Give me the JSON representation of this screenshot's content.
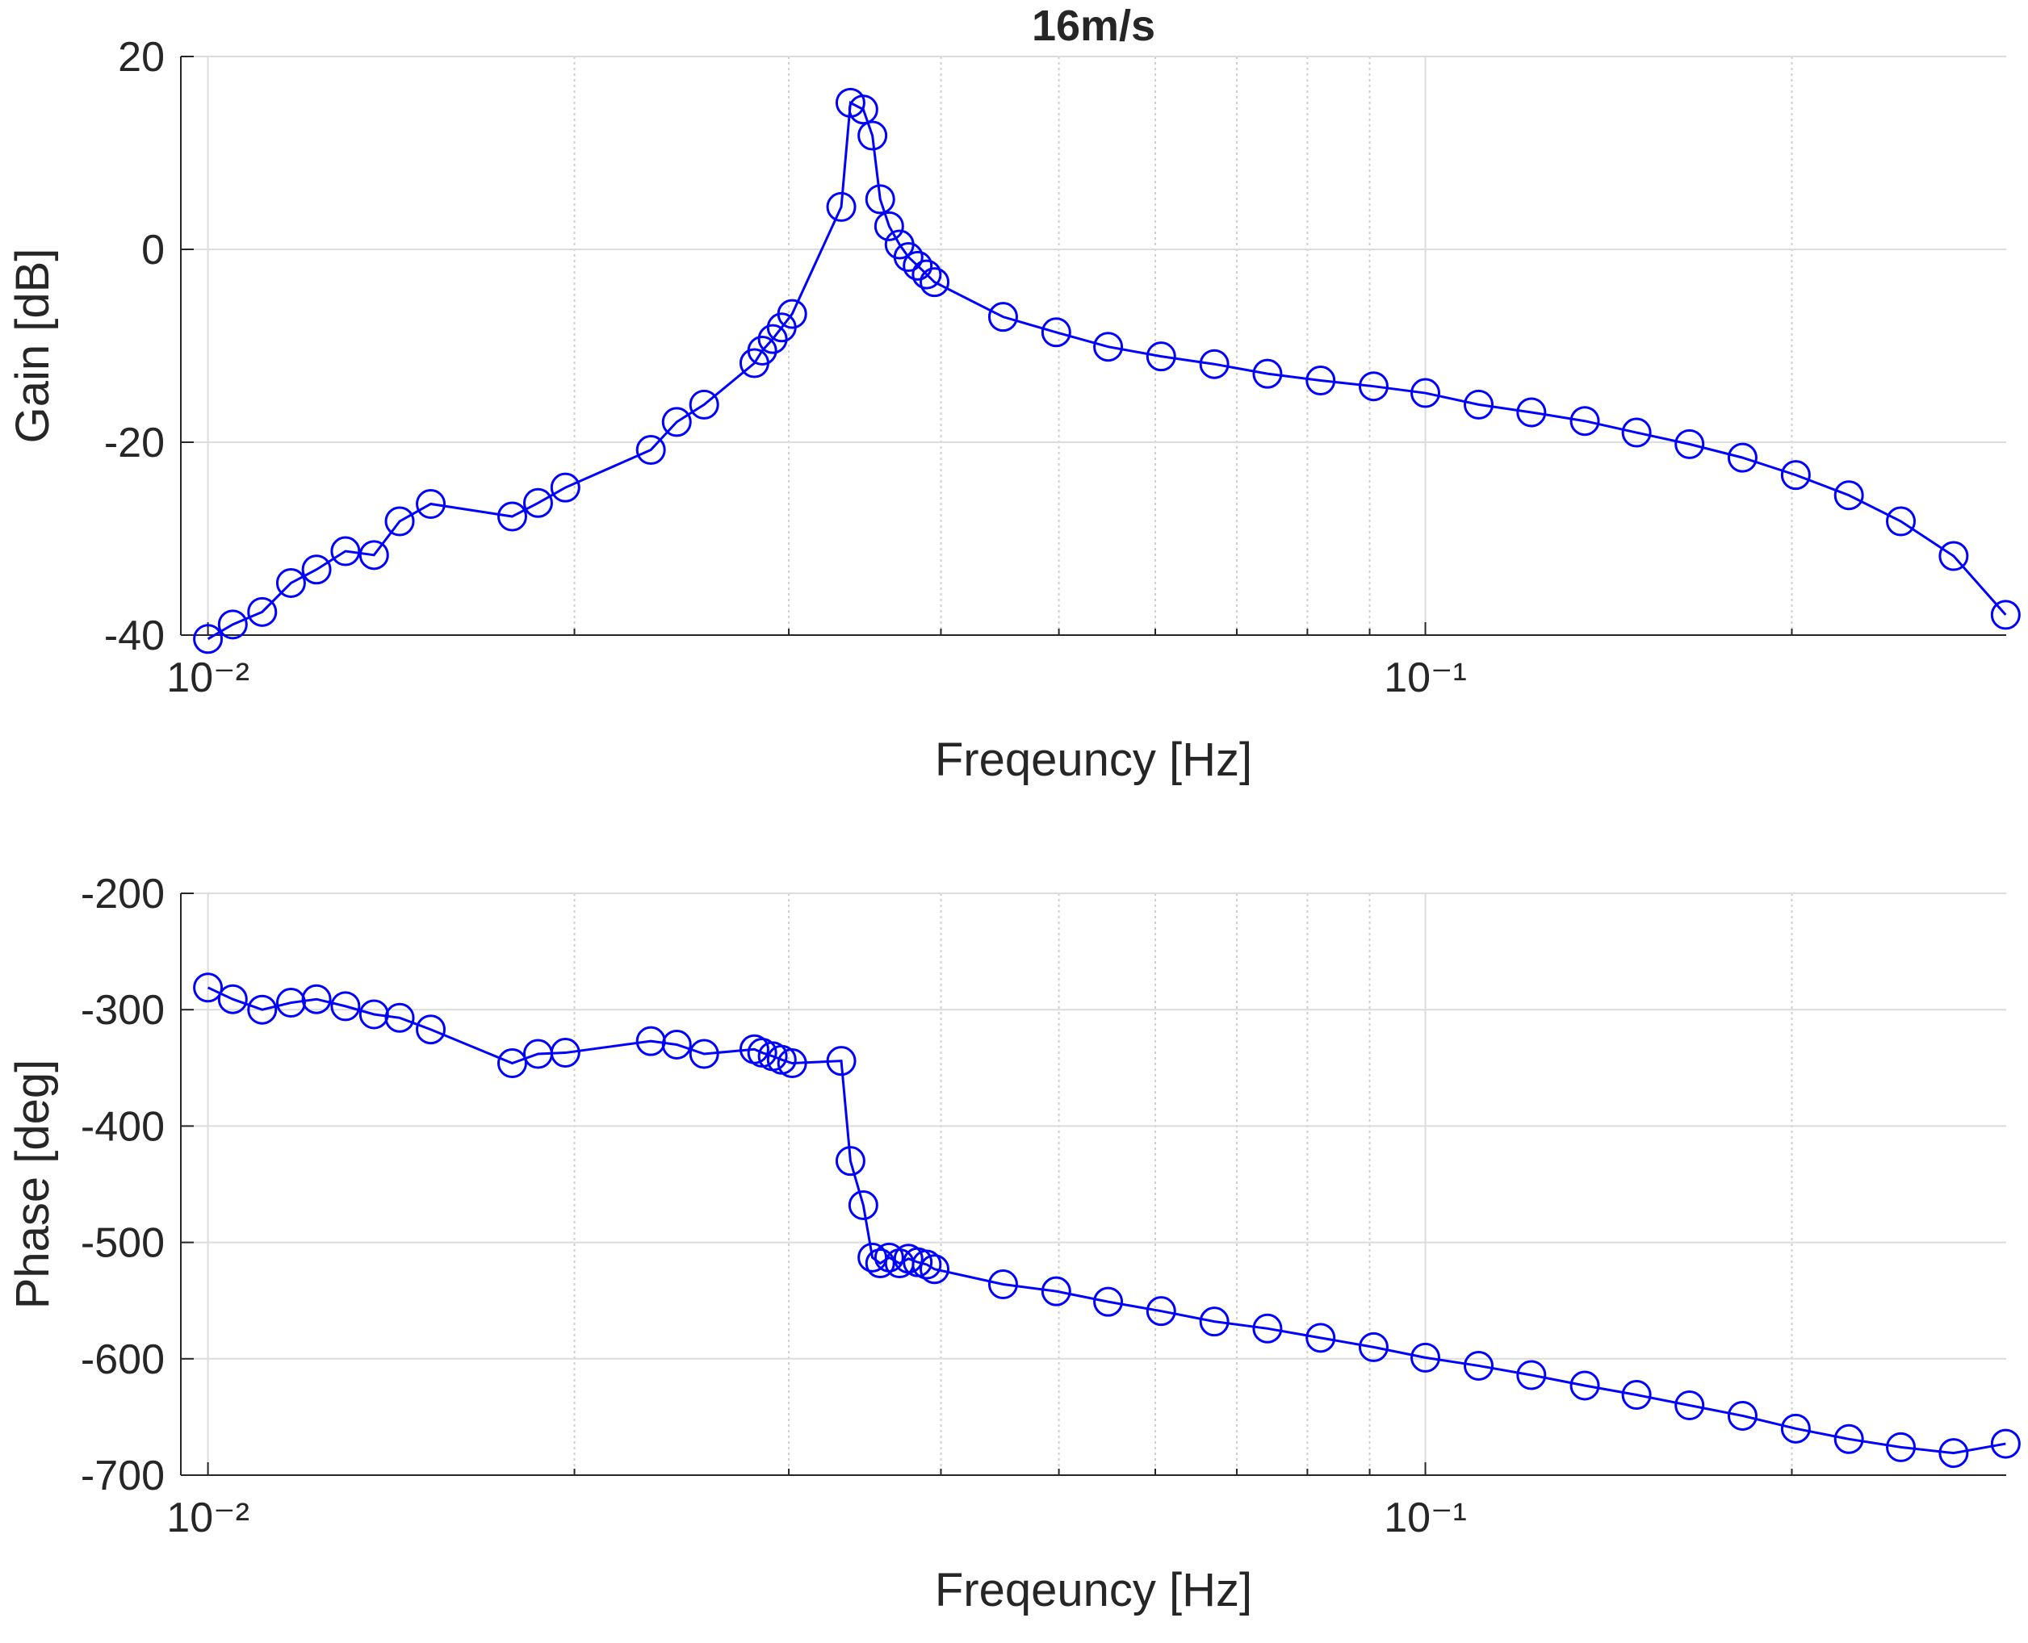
{
  "chart_data": [
    {
      "type": "line",
      "title": "16m/s",
      "xlabel": "Freqeuncy [Hz]",
      "ylabel": "Gain [dB]",
      "xscale": "log",
      "grid": true,
      "minor_grid": true,
      "color": "#0000ff",
      "marker": "circle",
      "xlim": [
        0.0095,
        0.3
      ],
      "xticks": [
        {
          "value": 0.01,
          "label": "10⁻²"
        },
        {
          "value": 0.1,
          "label": "10⁻¹"
        }
      ],
      "xminorticks": [
        0.02,
        0.03,
        0.04,
        0.05,
        0.06,
        0.07,
        0.08,
        0.09,
        0.2
      ],
      "ylim": [
        -40,
        20
      ],
      "yticks": [
        -40,
        -20,
        0,
        20
      ],
      "x": [
        0.01,
        0.01048,
        0.01108,
        0.0117,
        0.01228,
        0.01297,
        0.01369,
        0.01437,
        0.01524,
        0.01778,
        0.01867,
        0.01966,
        0.02311,
        0.02427,
        0.02556,
        0.02811,
        0.02853,
        0.0291,
        0.0296,
        0.03019,
        0.03313,
        0.03371,
        0.03454,
        0.03514,
        0.03566,
        0.03627,
        0.03699,
        0.03762,
        0.03828,
        0.03894,
        0.03952,
        0.04499,
        0.04975,
        0.05488,
        0.06067,
        0.06709,
        0.07418,
        0.08202,
        0.09068,
        0.1,
        0.1106,
        0.1222,
        0.1352,
        0.1491,
        0.1648,
        0.1822,
        0.2015,
        0.2228,
        0.2458,
        0.2716,
        0.2997
      ],
      "values": [
        -40.4,
        -38.9,
        -37.6,
        -34.6,
        -33.2,
        -31.3,
        -31.7,
        -28.2,
        -26.4,
        -27.7,
        -26.3,
        -24.7,
        -20.8,
        -17.9,
        -16.1,
        -11.8,
        -10.5,
        -9.3,
        -8.1,
        -6.7,
        4.4,
        15.2,
        14.5,
        11.8,
        5.2,
        2.4,
        0.5,
        -0.8,
        -1.7,
        -2.6,
        -3.4,
        -7.0,
        -8.6,
        -10.1,
        -11.1,
        -11.9,
        -12.9,
        -13.6,
        -14.2,
        -14.9,
        -16.1,
        -16.9,
        -17.8,
        -19.0,
        -20.2,
        -21.6,
        -23.4,
        -25.5,
        -28.2,
        -31.8,
        -37.9
      ]
    },
    {
      "type": "line",
      "xlabel": "Freqeuncy [Hz]",
      "ylabel": "Phase [deg]",
      "xscale": "log",
      "grid": true,
      "minor_grid": true,
      "color": "#0000ff",
      "marker": "circle",
      "xlim": [
        0.0095,
        0.3
      ],
      "xticks": [
        {
          "value": 0.01,
          "label": "10⁻²"
        },
        {
          "value": 0.1,
          "label": "10⁻¹"
        }
      ],
      "xminorticks": [
        0.02,
        0.03,
        0.04,
        0.05,
        0.06,
        0.07,
        0.08,
        0.09,
        0.2
      ],
      "ylim": [
        -700,
        -200
      ],
      "yticks": [
        -700,
        -600,
        -500,
        -400,
        -300,
        -200
      ],
      "x": [
        0.01,
        0.01048,
        0.01108,
        0.0117,
        0.01228,
        0.01297,
        0.01369,
        0.01437,
        0.01524,
        0.01778,
        0.01867,
        0.01966,
        0.02311,
        0.02427,
        0.02556,
        0.02811,
        0.02853,
        0.0291,
        0.0296,
        0.03019,
        0.03313,
        0.03371,
        0.03454,
        0.03514,
        0.03566,
        0.03627,
        0.03699,
        0.03762,
        0.03828,
        0.03894,
        0.03952,
        0.04499,
        0.04975,
        0.05488,
        0.06067,
        0.06709,
        0.07418,
        0.08202,
        0.09068,
        0.1,
        0.1106,
        0.1222,
        0.1352,
        0.1491,
        0.1648,
        0.1822,
        0.2015,
        0.2228,
        0.2458,
        0.2716,
        0.2997
      ],
      "values": [
        -281,
        -291,
        -300,
        -294,
        -291,
        -297,
        -304,
        -307,
        -317,
        -346,
        -338,
        -337,
        -327,
        -330,
        -338,
        -334,
        -337,
        -340,
        -343,
        -346,
        -344,
        -430,
        -468,
        -513,
        -518,
        -513,
        -518,
        -514,
        -517,
        -519,
        -523,
        -536,
        -542,
        -551,
        -559,
        -568,
        -574,
        -582,
        -590,
        -599,
        -606,
        -614,
        -623,
        -631,
        -640,
        -649,
        -660,
        -669,
        -676,
        -681,
        -673
      ]
    }
  ]
}
